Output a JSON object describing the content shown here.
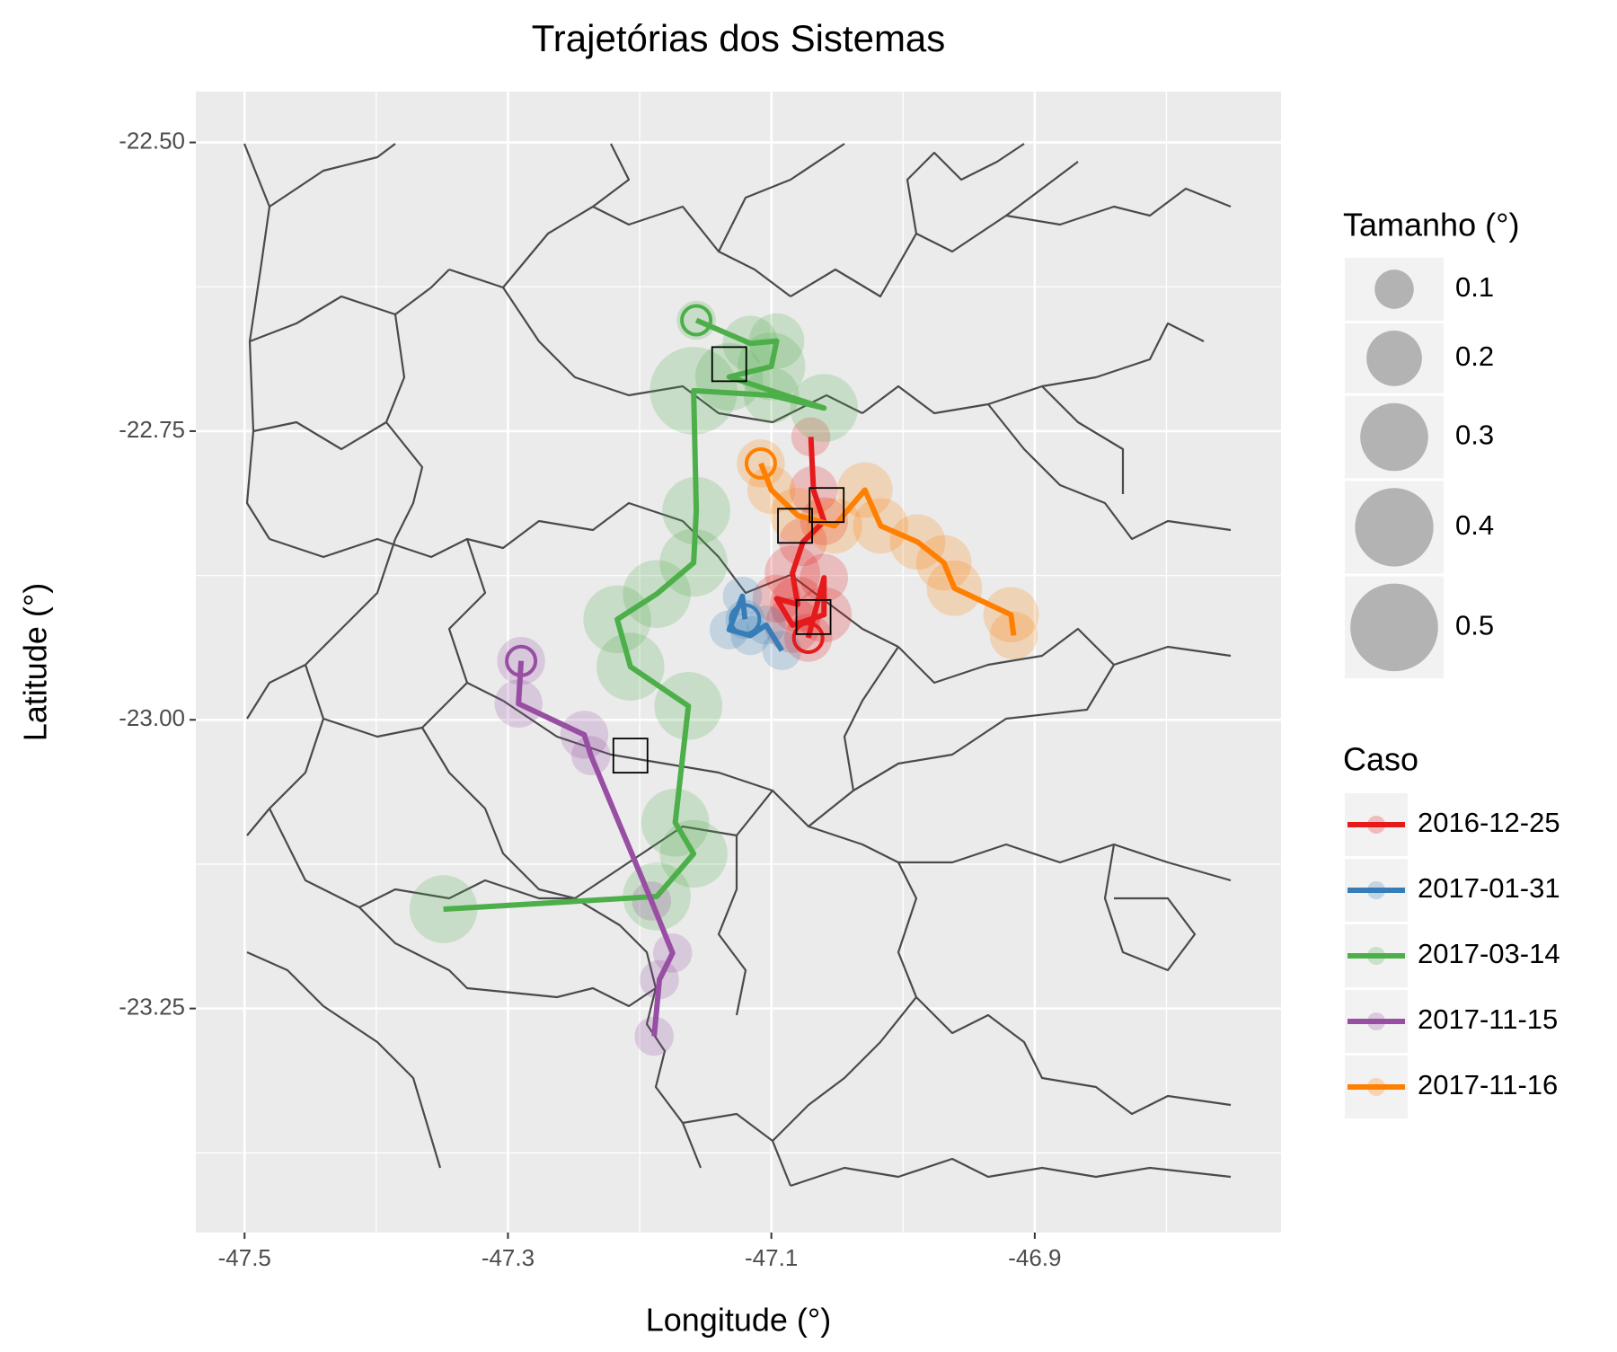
{
  "chart_data": {
    "type": "trajectory",
    "title": "Trajetórias dos Sistemas",
    "x_label": "Longitude (°)",
    "y_label": "Latitude (°)",
    "xlim": [
      -47.537,
      -46.713
    ],
    "ylim": [
      -23.444,
      -22.456
    ],
    "xticks": [
      -47.5,
      -47.3,
      -47.1,
      -46.9
    ],
    "yticks": [
      {
        "value": -22.5,
        "label": "-22.50"
      },
      -22.75,
      {
        "value": -23.0,
        "label": "-23.00"
      },
      -23.25
    ],
    "xminor": [
      -47.4,
      -47.2,
      -47.0,
      -46.8
    ],
    "yminor": [
      -22.625,
      -22.875,
      -23.125,
      -23.375
    ],
    "grid": true,
    "size_legend": {
      "title": "Tamanho (°)",
      "values": [
        0.1,
        0.2,
        0.3,
        0.4,
        0.5
      ]
    },
    "color_legend_title": "Caso",
    "series": [
      {
        "name": "2016-12-25",
        "color": "#e41a1c",
        "x": [
          -47.072,
          -47.06,
          -47.06,
          -47.084,
          -47.096,
          -47.08,
          -47.084,
          -47.076,
          -47.06,
          -47.068,
          -47.07
        ],
        "values": [
          -22.929,
          -22.877,
          -22.909,
          -22.918,
          -22.895,
          -22.9,
          -22.873,
          -22.846,
          -22.828,
          -22.801,
          -22.755
        ],
        "size": [
          0.15,
          0.15,
          0.2,
          0.2,
          0.15,
          0.2,
          0.2,
          0.15,
          0.15,
          0.15,
          0.1
        ]
      },
      {
        "name": "2017-01-31",
        "color": "#377eb8",
        "x": [
          -47.12,
          -47.122,
          -47.132,
          -47.116,
          -47.104,
          -47.092
        ],
        "values": [
          -22.913,
          -22.893,
          -22.922,
          -22.927,
          -22.918,
          -22.94
        ],
        "size": [
          0.1,
          0.1,
          0.1,
          0.1,
          0.1,
          0.1
        ]
      },
      {
        "name": "2017-03-14",
        "color": "#4daf4a",
        "x": [
          -47.157,
          -47.116,
          -47.096,
          -47.1,
          -47.132,
          -47.06,
          -47.1,
          -47.159,
          -47.157,
          -47.159,
          -47.187,
          -47.217,
          -47.207,
          -47.163,
          -47.173,
          -47.159,
          -47.187,
          -47.349
        ],
        "values": [
          -22.654,
          -22.674,
          -22.672,
          -22.694,
          -22.703,
          -22.73,
          -22.719,
          -22.715,
          -22.819,
          -22.864,
          -22.891,
          -22.913,
          -22.954,
          -22.988,
          -23.089,
          -23.116,
          -23.153,
          -23.164
        ],
        "size": [
          0.1,
          0.2,
          0.2,
          0.3,
          0.3,
          0.3,
          0.2,
          0.5,
          0.3,
          0.3,
          0.3,
          0.3,
          0.3,
          0.3,
          0.3,
          0.3,
          0.3,
          0.3
        ]
      },
      {
        "name": "2017-11-15",
        "color": "#984ea3",
        "x": [
          -47.29,
          -47.292,
          -47.242,
          -47.237,
          -47.191,
          -47.175,
          -47.185,
          -47.189
        ],
        "values": [
          -22.949,
          -22.986,
          -23.013,
          -23.031,
          -23.157,
          -23.202,
          -23.225,
          -23.274
        ],
        "size": [
          0.15,
          0.15,
          0.15,
          0.1,
          0.1,
          0.1,
          0.1,
          0.1
        ]
      },
      {
        "name": "2017-11-16",
        "color": "#ff7f00",
        "x": [
          -47.108,
          -47.1,
          -47.08,
          -47.052,
          -47.029,
          -47.017,
          -46.989,
          -46.969,
          -46.961,
          -46.918,
          -46.916
        ],
        "values": [
          -22.778,
          -22.801,
          -22.823,
          -22.832,
          -22.801,
          -22.832,
          -22.846,
          -22.864,
          -22.886,
          -22.909,
          -22.927
        ],
        "size": [
          0.15,
          0.15,
          0.2,
          0.2,
          0.2,
          0.2,
          0.2,
          0.2,
          0.2,
          0.2,
          0.15
        ]
      }
    ],
    "squares": {
      "x": [
        -47.132,
        -47.082,
        -47.058,
        -47.068,
        -47.207
      ],
      "y": [
        -22.692,
        -22.832,
        -22.814,
        -22.911,
        -23.031
      ]
    }
  }
}
